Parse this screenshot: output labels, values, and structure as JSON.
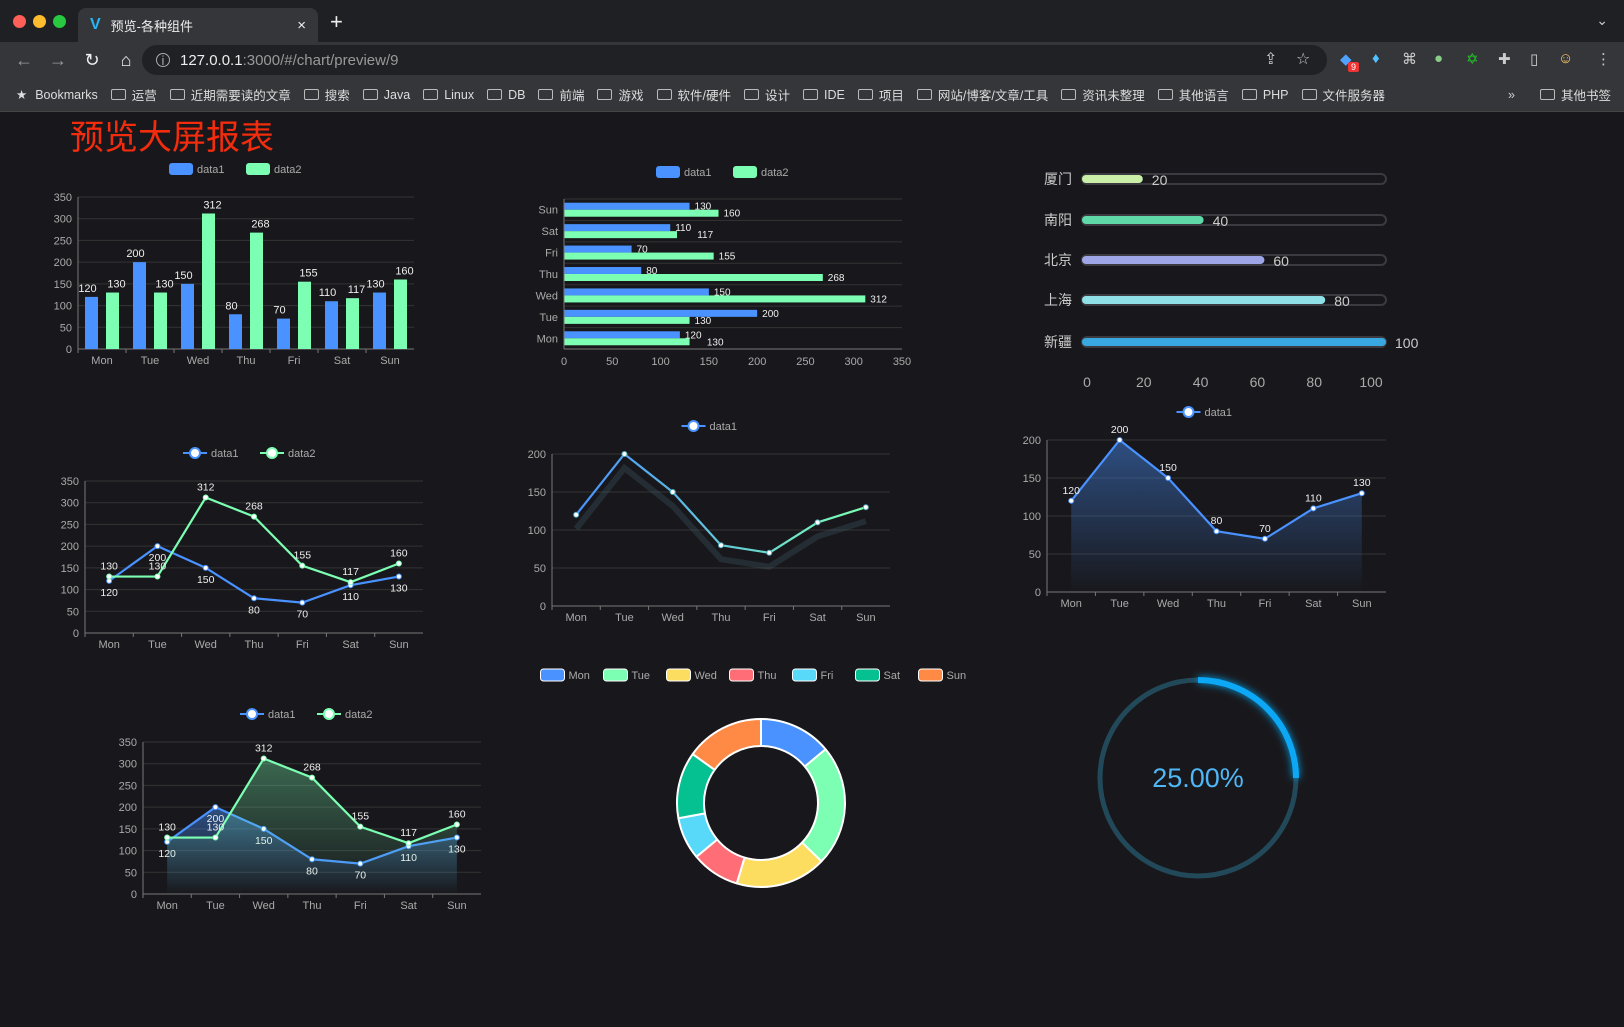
{
  "browser": {
    "tab_title": "预览-各种组件",
    "tab_close": "×",
    "new_tab": "+",
    "url_host": "127.0.0.1",
    "url_rest": ":3000/#/chart/preview/9",
    "extension_badge": "9",
    "bookmarks_label": "Bookmarks",
    "bookmark_folders": [
      "运营",
      "近期需要读的文章",
      "搜索",
      "Java",
      "Linux",
      "DB",
      "前端",
      "游戏",
      "软件/硬件",
      "设计",
      "IDE",
      "项目",
      "网站/博客/文章/工具",
      "资讯未整理",
      "其他语言",
      "PHP",
      "文件服务器"
    ],
    "more": "»",
    "other_bookmarks": "其他书签"
  },
  "page": {
    "title": "预览大屏报表"
  },
  "colors": {
    "data1": "#4992ff",
    "data2": "#7cffb2",
    "bg": "#18181c",
    "title": "#f22c0c",
    "ring": "#0ca8f5",
    "ring_track": "#22495a"
  },
  "chart_data": [
    {
      "type": "bar",
      "legend": [
        "data1",
        "data2"
      ],
      "categories": [
        "Mon",
        "Tue",
        "Wed",
        "Thu",
        "Fri",
        "Sat",
        "Sun"
      ],
      "series": [
        {
          "name": "data1",
          "values": [
            120,
            200,
            150,
            80,
            70,
            110,
            130
          ]
        },
        {
          "name": "data2",
          "values": [
            130,
            130,
            312,
            268,
            155,
            117,
            160
          ]
        }
      ],
      "ylim": [
        0,
        350
      ],
      "yticks": [
        0,
        50,
        100,
        150,
        200,
        250,
        300,
        350
      ],
      "grid": true,
      "legend_position": "top"
    },
    {
      "type": "bar",
      "orientation": "horizontal",
      "legend": [
        "data1",
        "data2"
      ],
      "categories": [
        "Mon",
        "Tue",
        "Wed",
        "Thu",
        "Fri",
        "Sat",
        "Sun"
      ],
      "series": [
        {
          "name": "data1",
          "values": [
            120,
            200,
            150,
            80,
            70,
            110,
            130
          ]
        },
        {
          "name": "data2",
          "values": [
            130,
            130,
            312,
            268,
            155,
            117,
            160
          ]
        }
      ],
      "xlim": [
        0,
        350
      ],
      "xticks": [
        0,
        50,
        100,
        150,
        200,
        250,
        300,
        350
      ],
      "grid": true,
      "legend_position": "top"
    },
    {
      "type": "bar",
      "orientation": "horizontal",
      "style": "capsule",
      "categories": [
        "厦门",
        "南阳",
        "北京",
        "上海",
        "新疆"
      ],
      "values": [
        20,
        40,
        60,
        80,
        100
      ],
      "colors": [
        "#c9f0a6",
        "#5fd9a8",
        "#9fa6e8",
        "#90e0e8",
        "#3aa8e0"
      ],
      "xlim": [
        0,
        100
      ],
      "xticks": [
        0,
        20,
        40,
        60,
        80,
        100
      ]
    },
    {
      "type": "line",
      "legend": [
        "data1",
        "data2"
      ],
      "categories": [
        "Mon",
        "Tue",
        "Wed",
        "Thu",
        "Fri",
        "Sat",
        "Sun"
      ],
      "series": [
        {
          "name": "data1",
          "values": [
            120,
            200,
            150,
            80,
            70,
            110,
            130
          ]
        },
        {
          "name": "data2",
          "values": [
            130,
            130,
            312,
            268,
            155,
            117,
            160
          ]
        }
      ],
      "ylim": [
        0,
        350
      ],
      "yticks": [
        0,
        50,
        100,
        150,
        200,
        250,
        300,
        350
      ],
      "grid": true,
      "legend_position": "top"
    },
    {
      "type": "line",
      "legend": [
        "data1"
      ],
      "gradient_line": [
        "#4992ff",
        "#7cffb2"
      ],
      "categories": [
        "Mon",
        "Tue",
        "Wed",
        "Thu",
        "Fri",
        "Sat",
        "Sun"
      ],
      "series": [
        {
          "name": "data1",
          "values": [
            120,
            200,
            150,
            80,
            70,
            110,
            130
          ]
        }
      ],
      "ylim": [
        0,
        200
      ],
      "yticks": [
        0,
        50,
        100,
        150,
        200
      ],
      "grid": true,
      "legend_position": "top"
    },
    {
      "type": "area",
      "legend": [
        "data1"
      ],
      "categories": [
        "Mon",
        "Tue",
        "Wed",
        "Thu",
        "Fri",
        "Sat",
        "Sun"
      ],
      "series": [
        {
          "name": "data1",
          "values": [
            120,
            200,
            150,
            80,
            70,
            110,
            130
          ]
        }
      ],
      "ylim": [
        0,
        200
      ],
      "yticks": [
        0,
        50,
        100,
        150,
        200
      ],
      "grid": true,
      "legend_position": "top"
    },
    {
      "type": "area",
      "legend": [
        "data1",
        "data2"
      ],
      "categories": [
        "Mon",
        "Tue",
        "Wed",
        "Thu",
        "Fri",
        "Sat",
        "Sun"
      ],
      "series": [
        {
          "name": "data1",
          "values": [
            120,
            200,
            150,
            80,
            70,
            110,
            130
          ]
        },
        {
          "name": "data2",
          "values": [
            130,
            130,
            312,
            268,
            155,
            117,
            160
          ]
        }
      ],
      "ylim": [
        0,
        350
      ],
      "yticks": [
        0,
        50,
        100,
        150,
        200,
        250,
        300,
        350
      ],
      "grid": true,
      "legend_position": "top"
    },
    {
      "type": "pie",
      "donut": true,
      "categories": [
        "Mon",
        "Tue",
        "Wed",
        "Thu",
        "Fri",
        "Sat",
        "Sun"
      ],
      "values": [
        120,
        200,
        150,
        80,
        70,
        110,
        130
      ],
      "colors": [
        "#4992ff",
        "#7cffb2",
        "#fddd60",
        "#ff6e76",
        "#58d9f9",
        "#05c091",
        "#ff8a45"
      ],
      "legend_position": "top"
    },
    {
      "type": "gauge",
      "style": "ring",
      "value": 25,
      "label": "25.00%"
    }
  ]
}
